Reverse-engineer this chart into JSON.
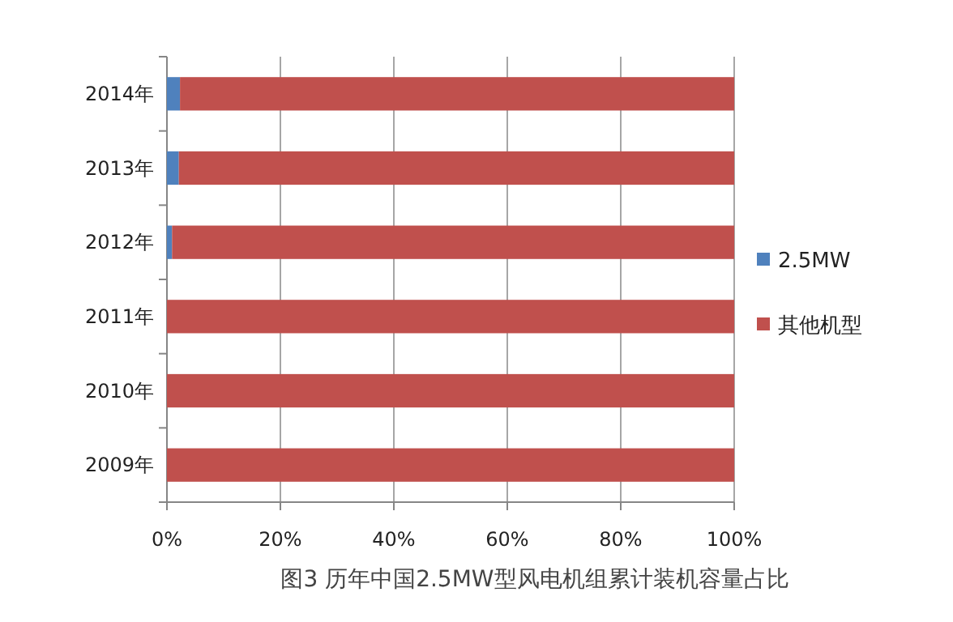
{
  "chart_data": {
    "type": "bar",
    "orientation": "horizontal",
    "stacked": true,
    "title": "图3 历年中国2.5MW型风电机组累计装机容量占比",
    "categories": [
      "2014年",
      "2013年",
      "2012年",
      "2011年",
      "2010年",
      "2009年"
    ],
    "series": [
      {
        "name": "2.5MW",
        "color": "#4f81bd",
        "values": [
          2.3,
          2.1,
          0.9,
          0,
          0,
          0
        ]
      },
      {
        "name": "其他机型",
        "color": "#c0504d",
        "values": [
          97.7,
          97.9,
          99.1,
          100,
          100,
          100
        ]
      }
    ],
    "xlim": [
      0,
      100
    ],
    "xticks": [
      {
        "value": 0,
        "label": "0%"
      },
      {
        "value": 20,
        "label": "20%"
      },
      {
        "value": 40,
        "label": "40%"
      },
      {
        "value": 60,
        "label": "60%"
      },
      {
        "value": 80,
        "label": "80%"
      },
      {
        "value": 100,
        "label": "100%"
      }
    ],
    "grid": "x",
    "legend": "right"
  }
}
